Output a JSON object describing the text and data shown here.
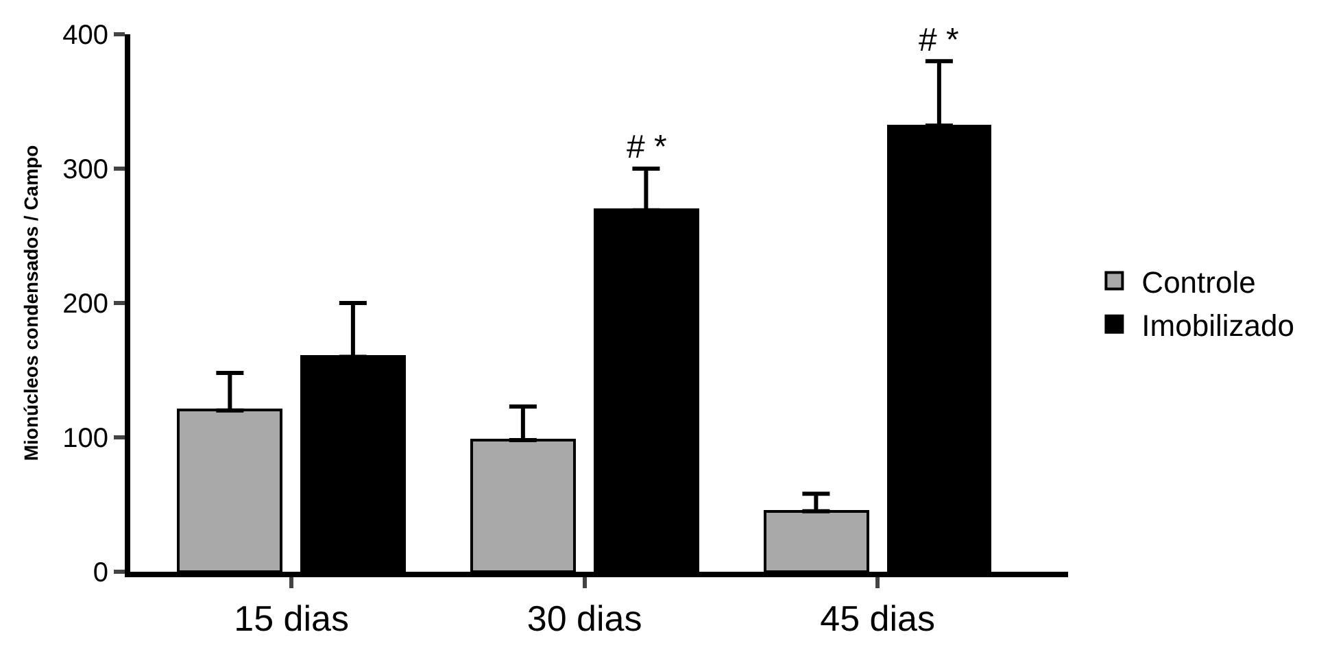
{
  "chart_data": {
    "type": "bar",
    "ylabel": "Mionúcleos condensados / Campo",
    "categories": [
      "15 dias",
      "30 dias",
      "45 dias"
    ],
    "series": [
      {
        "name": "Controle",
        "color": "#a8a8a8",
        "values": [
          120,
          98,
          45
        ],
        "errors": [
          [
            120,
            148
          ],
          [
            98,
            123
          ],
          [
            45,
            58
          ]
        ]
      },
      {
        "name": "Imobilizado",
        "color": "#000000",
        "values": [
          160,
          269,
          332
        ],
        "errors": [
          [
            160,
            200
          ],
          [
            269,
            300
          ],
          [
            332,
            380
          ]
        ]
      }
    ],
    "annotations": [
      "# *",
      "# *"
    ],
    "ylim": [
      0,
      400
    ],
    "yticks": [
      0,
      100,
      200,
      300,
      400
    ],
    "legend": "right"
  }
}
